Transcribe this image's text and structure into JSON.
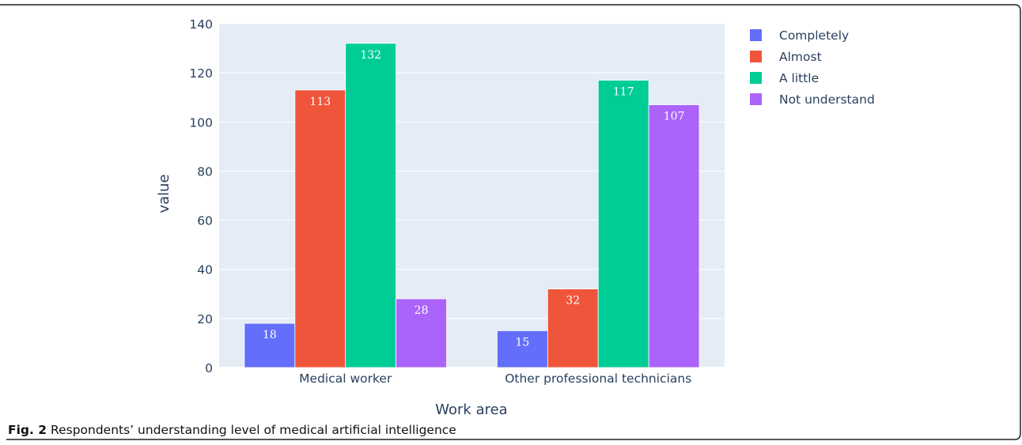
{
  "chart_data": {
    "type": "bar",
    "categories": [
      "Medical worker",
      "Other professional technicians"
    ],
    "series": [
      {
        "name": "Completely",
        "color": "#636efa",
        "values": [
          18,
          15
        ]
      },
      {
        "name": "Almost",
        "color": "#ef553b",
        "values": [
          113,
          32
        ]
      },
      {
        "name": "A little",
        "color": "#00cc96",
        "values": [
          132,
          117
        ]
      },
      {
        "name": "Not understand",
        "color": "#ab63fa",
        "values": [
          28,
          107
        ]
      }
    ],
    "xlabel": "Work area",
    "ylabel": "value",
    "ylim": [
      0,
      140
    ],
    "yticks": [
      0,
      20,
      40,
      60,
      80,
      100,
      120,
      140
    ],
    "grid": true,
    "legend_position": "top-right",
    "data_labels": true,
    "plot_background": "#e5ecf6"
  },
  "caption": {
    "prefix": "Fig. 2",
    "text": "Respondents’ understanding level of medical artificial intelligence"
  }
}
